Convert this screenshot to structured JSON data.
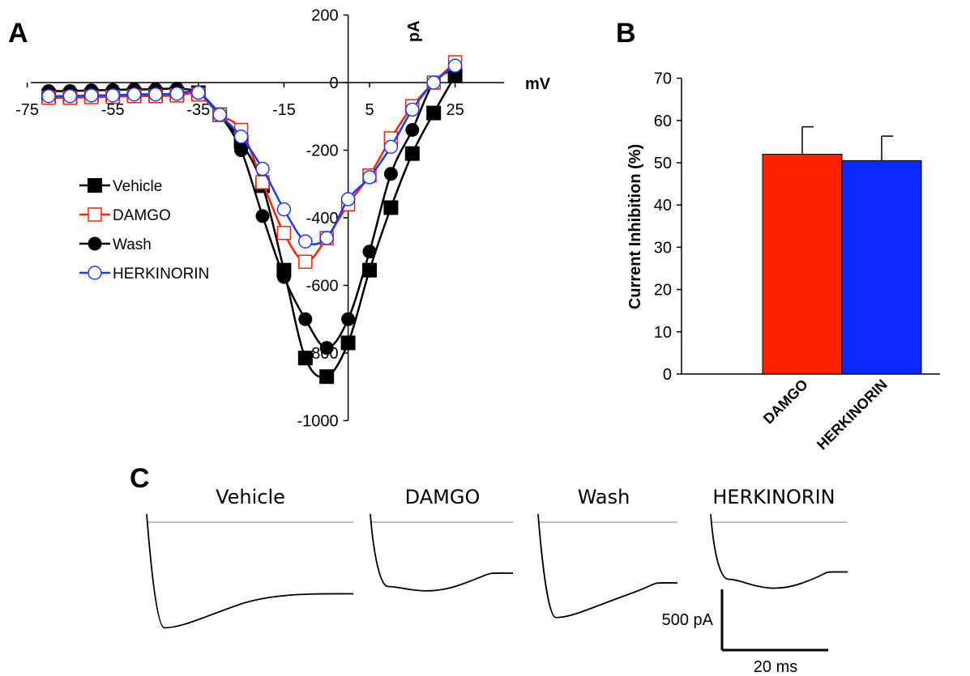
{
  "panels": {
    "a": "A",
    "b": "B",
    "c": "C"
  },
  "chart_data": [
    {
      "panel": "A",
      "type": "line",
      "xlabel": "mV",
      "ylabel": "pA",
      "xlim": [
        -75,
        30
      ],
      "ylim": [
        -1000,
        200
      ],
      "x_ticks": [
        -75,
        -55,
        -35,
        -15,
        5,
        25
      ],
      "y_ticks": [
        200,
        0,
        -200,
        -400,
        -600,
        -800,
        -1000
      ],
      "y_tick_labels": [
        "200",
        "0",
        "-200",
        "-400",
        "-600",
        "-800",
        "-1000"
      ],
      "x_tick_labels": [
        "-75",
        "-55",
        "-35",
        "-15",
        "5",
        "25"
      ],
      "legend_position": "left",
      "series": [
        {
          "name": "Vehicle",
          "color": "#000000",
          "marker": "square-filled",
          "x": [
            -70,
            -65,
            -60,
            -55,
            -50,
            -45,
            -40,
            -35,
            -30,
            -25,
            -20,
            -15,
            -10,
            -5,
            0,
            5,
            10,
            15,
            20,
            25
          ],
          "y": [
            -40,
            -40,
            -38,
            -38,
            -35,
            -35,
            -33,
            -30,
            -95,
            -175,
            -305,
            -555,
            -815,
            -870,
            -770,
            -555,
            -370,
            -210,
            -90,
            20
          ]
        },
        {
          "name": "DAMGO",
          "color": "#ff2200",
          "marker": "square-open",
          "x": [
            -70,
            -65,
            -60,
            -55,
            -50,
            -45,
            -40,
            -35,
            -30,
            -25,
            -20,
            -15,
            -10,
            -5,
            0,
            5,
            10,
            15,
            20,
            25
          ],
          "y": [
            -45,
            -45,
            -43,
            -42,
            -40,
            -40,
            -38,
            -35,
            -95,
            -140,
            -295,
            -445,
            -530,
            -460,
            -360,
            -275,
            -165,
            -70,
            0,
            60
          ]
        },
        {
          "name": "Wash",
          "color": "#000000",
          "marker": "circle-filled",
          "x": [
            -70,
            -65,
            -60,
            -55,
            -50,
            -45,
            -40,
            -35,
            -30,
            -25,
            -20,
            -15,
            -10,
            -5,
            0,
            5,
            10,
            15,
            20,
            25
          ],
          "y": [
            -25,
            -25,
            -23,
            -22,
            -20,
            -20,
            -18,
            -30,
            -95,
            -200,
            -395,
            -575,
            -700,
            -785,
            -700,
            -500,
            -270,
            -140,
            0,
            40
          ]
        },
        {
          "name": "HERKINORIN",
          "color": "#1a3cff",
          "marker": "circle-open",
          "x": [
            -70,
            -65,
            -60,
            -55,
            -50,
            -45,
            -40,
            -35,
            -30,
            -25,
            -20,
            -15,
            -10,
            -5,
            0,
            5,
            10,
            15,
            20,
            25
          ],
          "y": [
            -40,
            -40,
            -38,
            -38,
            -35,
            -35,
            -33,
            -30,
            -95,
            -160,
            -255,
            -375,
            -470,
            -460,
            -345,
            -280,
            -190,
            -80,
            0,
            50
          ]
        }
      ]
    },
    {
      "panel": "B",
      "type": "bar",
      "ylabel": "Current Inhibition (%)",
      "ylim": [
        0,
        70
      ],
      "y_ticks": [
        0,
        10,
        20,
        30,
        40,
        50,
        60,
        70
      ],
      "categories": [
        "DAMGO",
        "HERKINORIN"
      ],
      "values": [
        52,
        50.5
      ],
      "errors": [
        6.5,
        5.8
      ],
      "colors": [
        "#ff2200",
        "#0a28ff"
      ]
    },
    {
      "panel": "C",
      "type": "line",
      "traces": [
        {
          "title": "Vehicle",
          "peak": -870,
          "steady": -590
        },
        {
          "title": "DAMGO",
          "peak": -530,
          "steady": -420
        },
        {
          "title": "Wash",
          "peak": -785,
          "steady": -500
        },
        {
          "title": "HERKINORIN",
          "peak": -470,
          "steady": -410
        }
      ],
      "scale_bar": {
        "current": "500 pA",
        "time": "20 ms"
      }
    }
  ]
}
